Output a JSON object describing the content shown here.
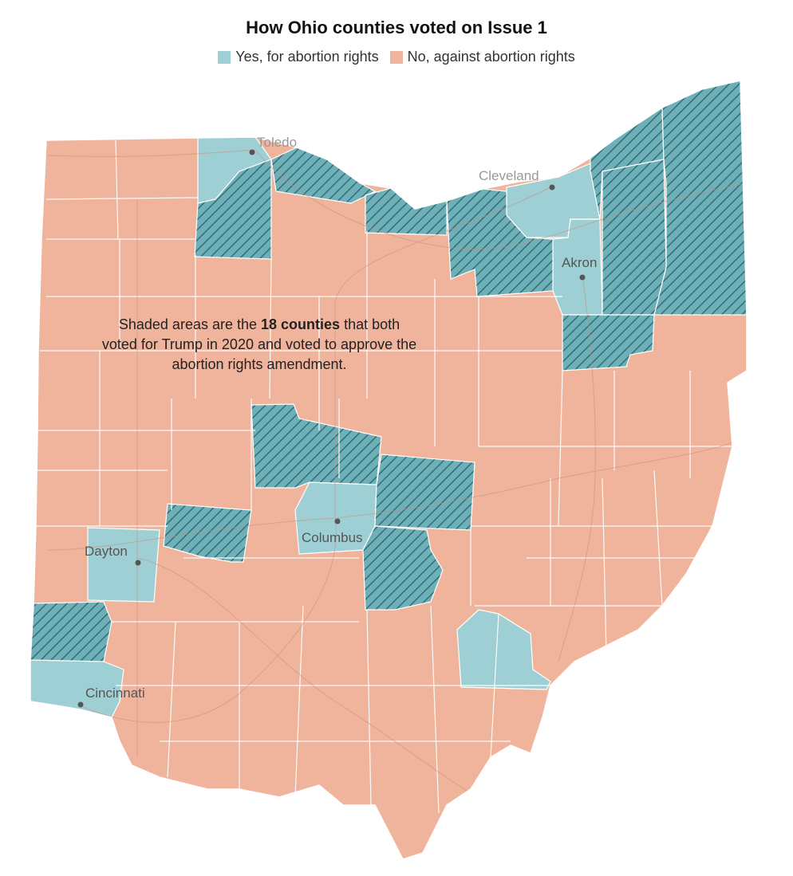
{
  "title": "How Ohio counties voted on Issue 1",
  "legend": [
    {
      "label": "Yes, for abortion rights",
      "color": "#9ecfd4"
    },
    {
      "label": "No, against abortion rights",
      "color": "#f0b39c"
    }
  ],
  "note": {
    "before": "Shaded areas are the ",
    "bold": "18 counties",
    "after": " that both voted for Trump in 2020 and voted to approve the abortion rights amendment."
  },
  "colors": {
    "yes": "#9ecfd4",
    "no": "#f0b39c",
    "shaded": "#6fb0b8",
    "hatch": "#2f6f78",
    "border": "#ffffff",
    "road": "#c98f78"
  },
  "cities": [
    {
      "name": "Toledo",
      "icon": "city-dot"
    },
    {
      "name": "Cleveland",
      "icon": "city-dot"
    },
    {
      "name": "Akron",
      "icon": "city-dot"
    },
    {
      "name": "Columbus",
      "icon": "city-dot"
    },
    {
      "name": "Dayton",
      "icon": "city-dot"
    },
    {
      "name": "Cincinnati",
      "icon": "city-dot"
    }
  ]
}
